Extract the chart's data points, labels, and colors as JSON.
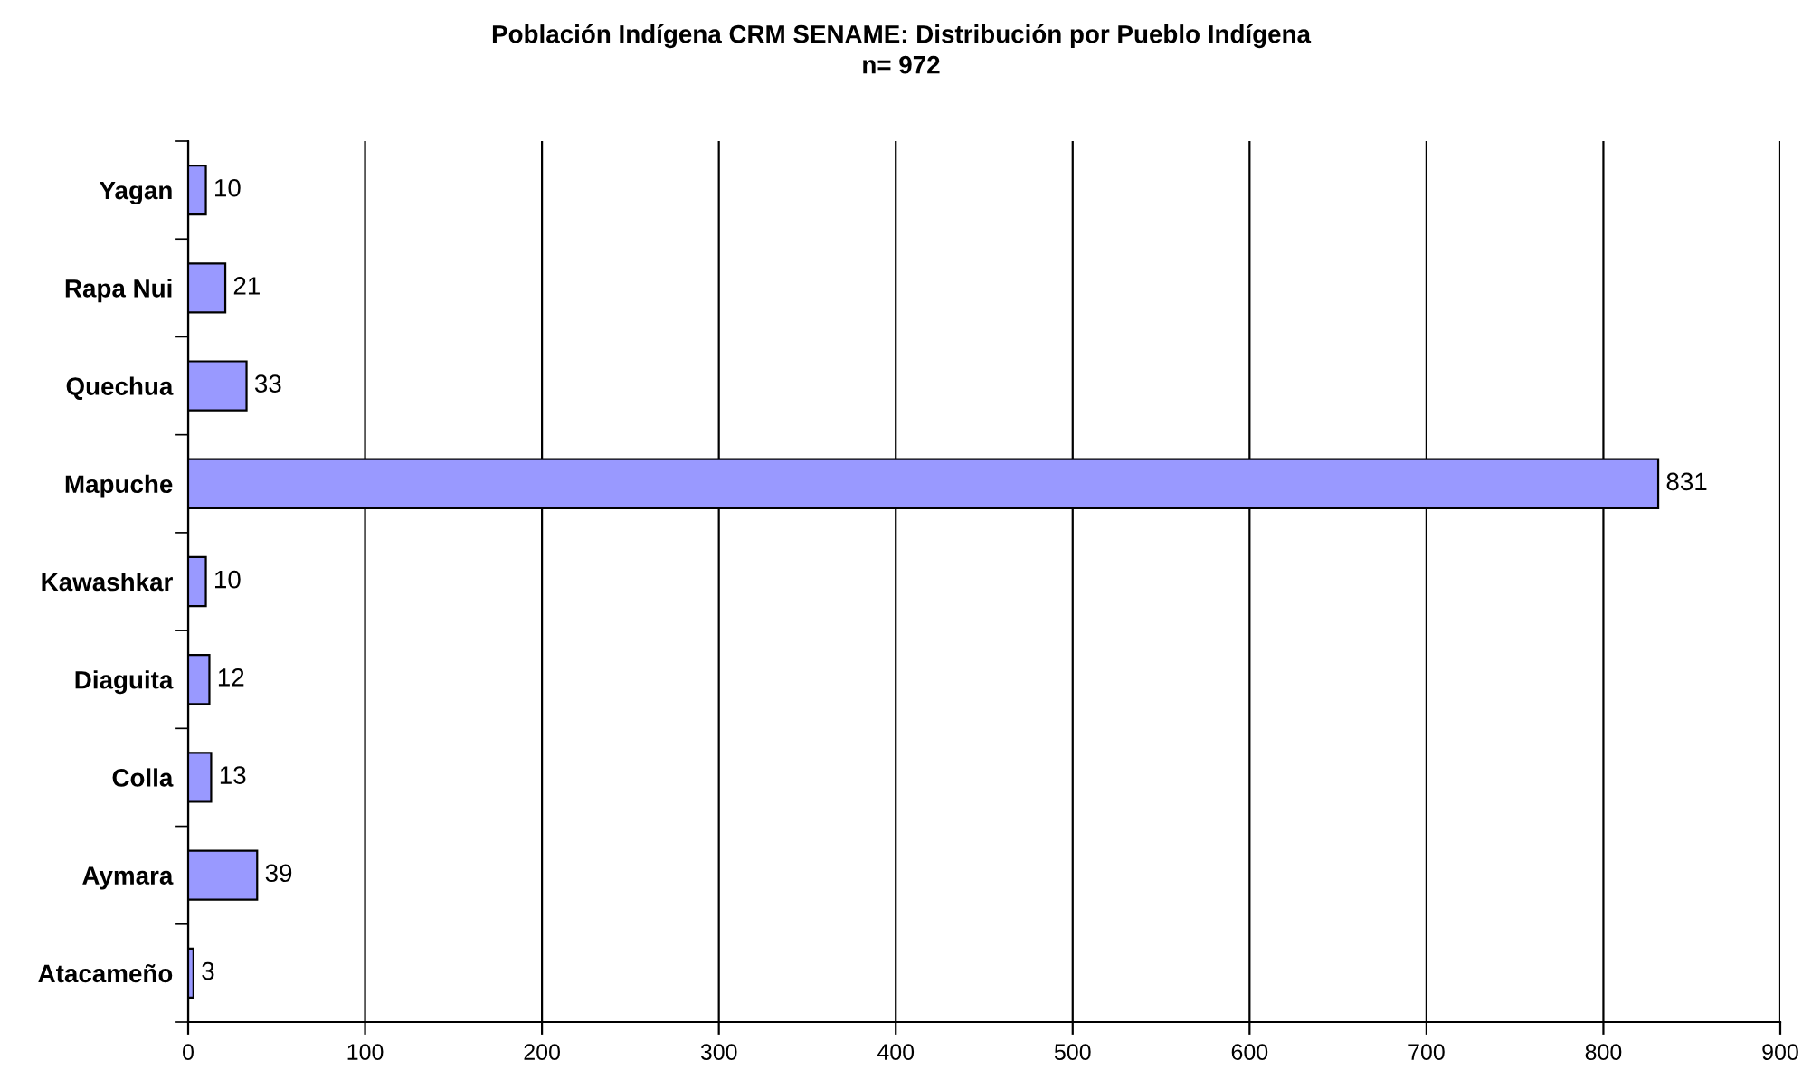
{
  "chart_data": {
    "type": "bar",
    "orientation": "horizontal",
    "title": "Población Indígena CRM SENAME: Distribución por Pueblo Indígena",
    "subtitle": "n= 972",
    "categories": [
      "Yagan",
      "Rapa Nui",
      "Quechua",
      "Mapuche",
      "Kawashkar",
      "Diaguita",
      "Colla",
      "Aymara",
      "Atacameño"
    ],
    "values": [
      10,
      21,
      33,
      831,
      10,
      12,
      13,
      39,
      3
    ],
    "color": "#9999ff",
    "xlim": [
      0,
      900
    ],
    "xticks": [
      0,
      100,
      200,
      300,
      400,
      500,
      600,
      700,
      800,
      900
    ],
    "grid": "x",
    "data_labels": true
  }
}
